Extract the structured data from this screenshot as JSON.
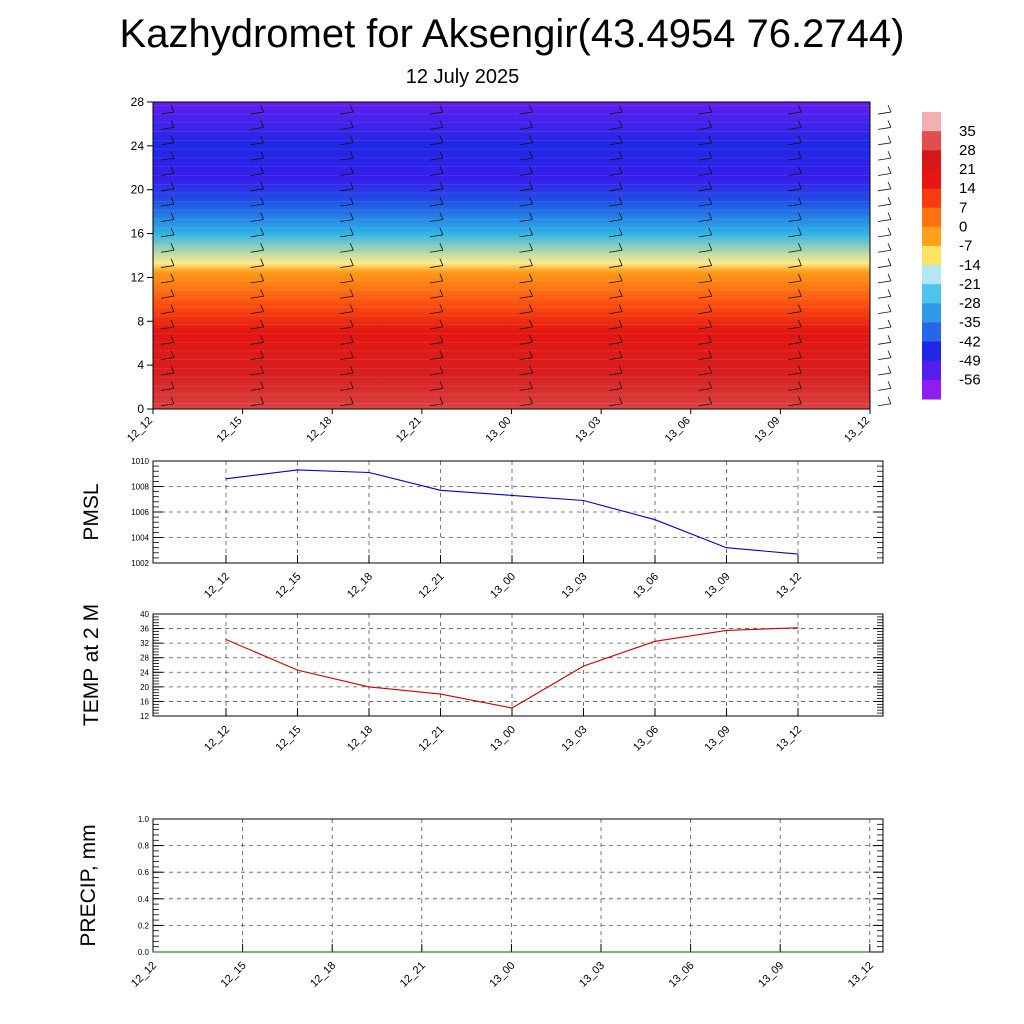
{
  "title": "Kazhydromet for Aksengir(43.4954 76.2744)",
  "subtitle": "12 July 2025",
  "chart_data": [
    {
      "type": "heatmap",
      "description": "vertical cross-section of temperature with wind barbs",
      "xlabel": "",
      "ylabel": "",
      "x_ticks": [
        "12_12",
        "12_15",
        "12_18",
        "12_21",
        "13_00",
        "13_03",
        "13_06",
        "13_09",
        "13_12"
      ],
      "y_ticks": [
        0,
        4,
        8,
        12,
        16,
        20,
        24,
        28
      ],
      "ylim": [
        0,
        28
      ],
      "colorbar": {
        "labels": [
          35,
          28,
          21,
          14,
          7,
          0,
          -7,
          -14,
          -21,
          -28,
          -35,
          -42,
          -49,
          -56
        ]
      },
      "value_profile": [
        {
          "y": 0,
          "value": 30
        },
        {
          "y": 3,
          "value": 26
        },
        {
          "y": 7,
          "value": 18
        },
        {
          "y": 10,
          "value": 6
        },
        {
          "y": 12.5,
          "value": -3
        },
        {
          "y": 13.3,
          "value": -12
        },
        {
          "y": 16,
          "value": -28
        },
        {
          "y": 19,
          "value": -42
        },
        {
          "y": 21,
          "value": -50
        },
        {
          "y": 24,
          "value": -46
        },
        {
          "y": 28,
          "value": -55
        }
      ]
    },
    {
      "type": "line",
      "ylabel": "PMSL",
      "categories": [
        "12_12",
        "12_15",
        "12_18",
        "12_21",
        "13_00",
        "13_03",
        "13_06",
        "13_09",
        "13_12"
      ],
      "series": [
        {
          "values": [
            1008.6,
            1009.3,
            1009.1,
            1007.7,
            1007.3,
            1006.9,
            1005.4,
            1003.2,
            1002.7
          ],
          "color": "#0000cc"
        }
      ],
      "ylim": [
        1002,
        1010
      ],
      "y_ticks": [
        1002,
        1004,
        1006,
        1008,
        1010
      ],
      "grid": true
    },
    {
      "type": "line",
      "ylabel": "TEMP at 2 M",
      "categories": [
        "12_12",
        "12_15",
        "12_18",
        "12_21",
        "13_00",
        "13_03",
        "13_06",
        "13_09",
        "13_12"
      ],
      "series": [
        {
          "values": [
            33,
            24.6,
            20,
            18,
            14.2,
            25.7,
            32.5,
            35.5,
            36.2
          ],
          "color": "#cc0000"
        }
      ],
      "ylim": [
        12,
        40
      ],
      "y_ticks": [
        12,
        16,
        20,
        24,
        28,
        32,
        36,
        40
      ],
      "grid": true
    },
    {
      "type": "line",
      "ylabel": "PRECIP, mm",
      "categories": [
        "12_12",
        "12_15",
        "12_18",
        "12_21",
        "13_00",
        "13_03",
        "13_06",
        "13_09",
        "13_12"
      ],
      "series": [
        {
          "values": [
            0,
            0,
            0,
            0,
            0,
            0,
            0,
            0,
            0
          ],
          "color": "#006600"
        }
      ],
      "ylim": [
        0,
        1.0
      ],
      "y_ticks": [
        "0.0",
        "0.2",
        "0.4",
        "0.6",
        "0.8",
        "1.0"
      ],
      "grid": true
    }
  ]
}
